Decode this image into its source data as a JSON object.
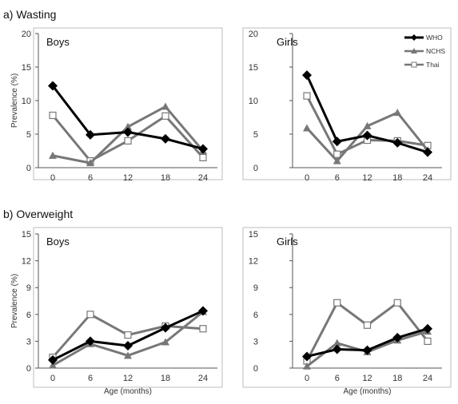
{
  "section_titles": [
    "a) Wasting",
    "b) Overweight"
  ],
  "legend": [
    {
      "name": "WHO",
      "color": "#000000",
      "marker": "diamond"
    },
    {
      "name": "NCHS",
      "color": "#777777",
      "marker": "triangle"
    },
    {
      "name": "Thai",
      "color": "#777777",
      "marker": "open-square"
    }
  ],
  "chart_data": [
    {
      "type": "line",
      "section": "a) Wasting",
      "title": "Boys",
      "x": [
        0,
        6,
        12,
        18,
        24
      ],
      "xlabel": "",
      "ylabel": "Prevalence (%)",
      "ylim": [
        0,
        20
      ],
      "yticks": [
        0,
        5,
        10,
        15,
        20
      ],
      "grid": false,
      "series": [
        {
          "name": "WHO",
          "values": [
            12.2,
            4.9,
            5.3,
            4.3,
            2.8
          ]
        },
        {
          "name": "NCHS",
          "values": [
            1.8,
            0.7,
            6.1,
            9.1,
            2.5
          ]
        },
        {
          "name": "Thai",
          "values": [
            7.8,
            1.0,
            4.0,
            7.7,
            1.5
          ]
        }
      ]
    },
    {
      "type": "line",
      "section": "a) Wasting",
      "title": "Girls",
      "x": [
        0,
        6,
        12,
        18,
        24
      ],
      "xlabel": "",
      "ylabel": "",
      "ylim": [
        0,
        20
      ],
      "yticks": [
        0,
        5,
        10,
        15,
        20
      ],
      "grid": false,
      "legend_position": "top-right",
      "series": [
        {
          "name": "WHO",
          "values": [
            13.8,
            3.9,
            4.8,
            3.7,
            2.3
          ]
        },
        {
          "name": "NCHS",
          "values": [
            5.9,
            1.0,
            6.2,
            8.2,
            2.6
          ]
        },
        {
          "name": "Thai",
          "values": [
            10.7,
            2.0,
            4.1,
            4.0,
            3.3
          ]
        }
      ]
    },
    {
      "type": "line",
      "section": "b) Overweight",
      "title": "Boys",
      "x": [
        0,
        6,
        12,
        18,
        24
      ],
      "xlabel": "Age (months)",
      "ylabel": "Prevalence (%)",
      "ylim": [
        0,
        15
      ],
      "yticks": [
        0,
        3,
        6,
        9,
        12,
        15
      ],
      "grid": false,
      "series": [
        {
          "name": "WHO",
          "values": [
            0.9,
            3.0,
            2.5,
            4.5,
            6.4
          ]
        },
        {
          "name": "NCHS",
          "values": [
            0.3,
            2.7,
            1.4,
            2.9,
            6.3
          ]
        },
        {
          "name": "Thai",
          "values": [
            1.2,
            6.0,
            3.7,
            4.7,
            4.4
          ]
        }
      ]
    },
    {
      "type": "line",
      "section": "b) Overweight",
      "title": "Girls",
      "x": [
        0,
        6,
        12,
        18,
        24
      ],
      "xlabel": "Age (months)",
      "ylabel": "",
      "ylim": [
        0,
        15
      ],
      "yticks": [
        0,
        3,
        6,
        9,
        12,
        15
      ],
      "grid": false,
      "series": [
        {
          "name": "WHO",
          "values": [
            1.3,
            2.1,
            2.0,
            3.4,
            4.4
          ]
        },
        {
          "name": "NCHS",
          "values": [
            0.2,
            2.8,
            1.8,
            3.1,
            4.1
          ]
        },
        {
          "name": "Thai",
          "values": [
            0.8,
            7.3,
            4.8,
            7.3,
            3.0
          ]
        }
      ]
    }
  ]
}
